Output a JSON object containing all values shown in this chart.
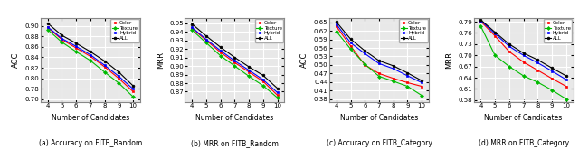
{
  "x": [
    4,
    5,
    6,
    7,
    8,
    9,
    10
  ],
  "plots": [
    {
      "title": "(a) Accuracy on FITB_Random",
      "ylabel": "ACC",
      "ylim": [
        0.755,
        0.915
      ],
      "yticks": [
        0.76,
        0.78,
        0.8,
        0.82,
        0.84,
        0.86,
        0.88,
        0.9
      ],
      "series": {
        "Color": [
          0.897,
          0.874,
          0.858,
          0.842,
          0.822,
          0.8,
          0.775
        ],
        "Texture": [
          0.893,
          0.869,
          0.851,
          0.834,
          0.812,
          0.791,
          0.765
        ],
        "Hybrid": [
          0.898,
          0.876,
          0.861,
          0.845,
          0.825,
          0.804,
          0.78
        ],
        "ALL": [
          0.905,
          0.882,
          0.867,
          0.851,
          0.833,
          0.812,
          0.786
        ]
      }
    },
    {
      "title": "(b) MRR on FITB_Random",
      "ylabel": "MRR",
      "ylim": [
        0.858,
        0.956
      ],
      "yticks": [
        0.87,
        0.88,
        0.89,
        0.9,
        0.91,
        0.92,
        0.93,
        0.94,
        0.95
      ],
      "series": {
        "Color": [
          0.944,
          0.93,
          0.916,
          0.904,
          0.893,
          0.882,
          0.866
        ],
        "Texture": [
          0.942,
          0.927,
          0.912,
          0.9,
          0.888,
          0.877,
          0.863
        ],
        "Hybrid": [
          0.945,
          0.931,
          0.918,
          0.906,
          0.895,
          0.884,
          0.869
        ],
        "ALL": [
          0.949,
          0.935,
          0.922,
          0.91,
          0.899,
          0.889,
          0.874
        ]
      }
    },
    {
      "title": "(c) Accuracy on FITB_Category",
      "ylabel": "ACC",
      "ylim": [
        0.37,
        0.665
      ],
      "yticks": [
        0.38,
        0.41,
        0.44,
        0.47,
        0.5,
        0.53,
        0.56,
        0.59,
        0.62,
        0.65
      ],
      "series": {
        "Color": [
          0.635,
          0.567,
          0.5,
          0.47,
          0.453,
          0.438,
          0.425
        ],
        "Texture": [
          0.618,
          0.556,
          0.503,
          0.46,
          0.443,
          0.425,
          0.393
        ],
        "Hybrid": [
          0.643,
          0.578,
          0.54,
          0.505,
          0.487,
          0.462,
          0.438
        ],
        "ALL": [
          0.651,
          0.591,
          0.55,
          0.515,
          0.497,
          0.472,
          0.445
        ]
      }
    },
    {
      "title": "(d) MRR on FITB_Category",
      "ylabel": "MRR",
      "ylim": [
        0.575,
        0.8
      ],
      "yticks": [
        0.58,
        0.61,
        0.64,
        0.67,
        0.7,
        0.73,
        0.76,
        0.79
      ],
      "series": {
        "Color": [
          0.791,
          0.752,
          0.71,
          0.682,
          0.66,
          0.638,
          0.617
        ],
        "Texture": [
          0.778,
          0.7,
          0.67,
          0.645,
          0.628,
          0.607,
          0.583
        ],
        "Hybrid": [
          0.793,
          0.758,
          0.724,
          0.7,
          0.68,
          0.658,
          0.635
        ],
        "ALL": [
          0.795,
          0.762,
          0.73,
          0.706,
          0.688,
          0.666,
          0.645
        ]
      }
    }
  ],
  "colors": {
    "Color": "#FF0000",
    "Texture": "#00BB00",
    "Hybrid": "#0000FF",
    "ALL": "#000000"
  },
  "markers": {
    "Color": "s",
    "Texture": "D",
    "Hybrid": "s",
    "ALL": "o"
  },
  "series_order": [
    "Color",
    "Texture",
    "Hybrid",
    "ALL"
  ],
  "xlabel": "Number of Candidates",
  "bg_color": "#E8E8E8"
}
